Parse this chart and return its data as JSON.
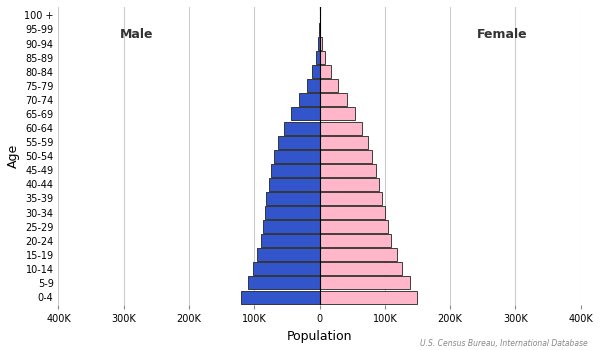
{
  "age_groups": [
    "0-4",
    "5-9",
    "10-14",
    "15-19",
    "20-24",
    "25-29",
    "30-34",
    "35-39",
    "40-44",
    "45-49",
    "50-54",
    "55-59",
    "60-64",
    "65-69",
    "70-74",
    "75-79",
    "80-84",
    "85-89",
    "90-94",
    "95-99",
    "100 +"
  ],
  "male": [
    120000,
    110000,
    102000,
    96000,
    90000,
    87000,
    84000,
    82000,
    78000,
    74000,
    70000,
    63000,
    54000,
    44000,
    32000,
    20000,
    11000,
    5000,
    2000,
    600,
    100
  ],
  "female": [
    150000,
    138000,
    126000,
    118000,
    110000,
    105000,
    100000,
    96000,
    91000,
    86000,
    81000,
    74000,
    65000,
    54000,
    42000,
    28000,
    17000,
    9000,
    3800,
    1200,
    250
  ],
  "male_color": "#3355CC",
  "female_color": "#FFB6C8",
  "male_edge_color": "#222222",
  "female_edge_color": "#222222",
  "xlabel": "Population",
  "ylabel": "Age",
  "xlim": 400000,
  "xticks": [
    -400000,
    -300000,
    -200000,
    -100000,
    0,
    100000,
    200000,
    300000,
    400000
  ],
  "xtick_labels": [
    "400K",
    "300K",
    "200K",
    "100K",
    "0",
    "100K",
    "200K",
    "300K",
    "400K"
  ],
  "male_label": "Male",
  "female_label": "Female",
  "source_text": "U.S. Census Bureau, International Database",
  "background_color": "#ffffff",
  "grid_color": "#cccccc",
  "bar_linewidth": 0.6
}
